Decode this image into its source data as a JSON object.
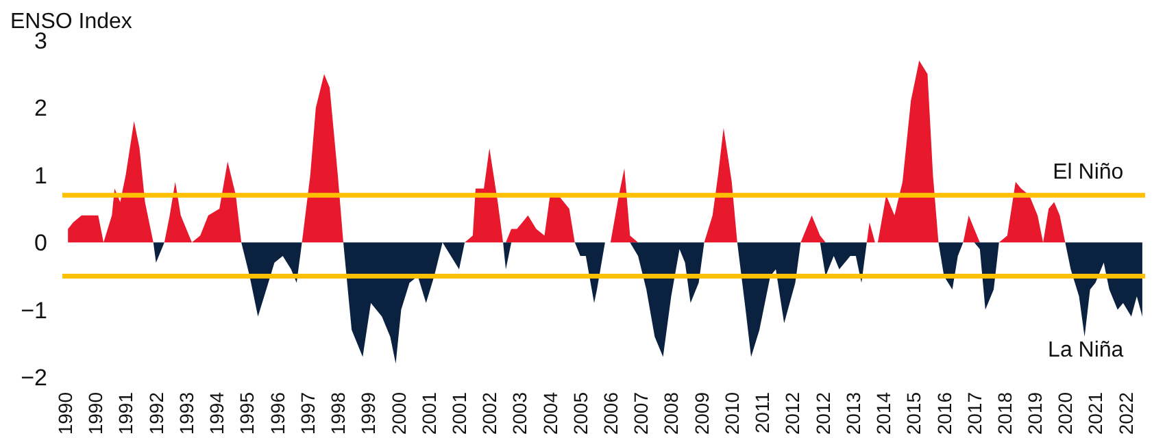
{
  "chart_data": {
    "type": "area",
    "ylabel": "ENSO Index",
    "x": [
      "1990-02",
      "1990-04",
      "1990-07",
      "1990-10",
      "1991-01",
      "1991-03",
      "1991-06",
      "1991-07",
      "1991-09",
      "1991-11",
      "1992-02",
      "1992-04",
      "1992-06",
      "1992-09",
      "1992-10",
      "1993-01",
      "1993-03",
      "1993-05",
      "1993-07",
      "1993-11",
      "1994-02",
      "1994-05",
      "1994-09",
      "1994-12",
      "1995-03",
      "1995-05",
      "1995-08",
      "1995-11",
      "1996-02",
      "1996-05",
      "1996-08",
      "1996-11",
      "1997-01",
      "1997-03",
      "1997-06",
      "1997-08",
      "1997-11",
      "1998-01",
      "1998-04",
      "1998-06",
      "1998-09",
      "1999-01",
      "1999-04",
      "1999-08",
      "1999-11",
      "2000-01",
      "2000-03",
      "2000-06",
      "2000-09",
      "2000-12",
      "2001-03",
      "2001-06",
      "2001-09",
      "2001-12",
      "2002-02",
      "2002-05",
      "2002-06",
      "2002-09",
      "2002-11",
      "2003-02",
      "2003-04",
      "2003-05",
      "2003-07",
      "2003-09",
      "2004-01",
      "2004-04",
      "2004-07",
      "2004-09",
      "2004-12",
      "2005-04",
      "2005-06",
      "2005-08",
      "2005-10",
      "2006-01",
      "2006-02",
      "2006-05",
      "2006-07",
      "2006-10",
      "2006-12",
      "2007-02",
      "2007-05",
      "2007-08",
      "2007-11",
      "2008-02",
      "2008-05",
      "2008-08",
      "2008-10",
      "2008-12",
      "2009-03",
      "2009-05",
      "2009-08",
      "2009-10",
      "2009-12",
      "2010-03",
      "2010-05",
      "2010-08",
      "2010-10",
      "2011-01",
      "2011-05",
      "2011-07",
      "2011-10",
      "2012-02",
      "2012-04",
      "2012-08",
      "2012-11",
      "2013-01",
      "2013-04",
      "2013-06",
      "2013-10",
      "2013-12",
      "2014-02",
      "2014-04",
      "2014-05",
      "2014-07",
      "2014-08",
      "2014-11",
      "2015-02",
      "2015-05",
      "2015-08",
      "2015-11",
      "2016-02",
      "2016-04",
      "2016-06",
      "2016-08",
      "2016-11",
      "2017-01",
      "2017-03",
      "2017-05",
      "2017-07",
      "2017-09",
      "2017-11",
      "2018-02",
      "2018-04",
      "2018-07",
      "2018-10",
      "2018-12",
      "2019-03",
      "2019-06",
      "2019-08",
      "2019-10",
      "2019-12",
      "2020-02",
      "2020-04",
      "2020-06",
      "2020-09",
      "2020-11",
      "2021-01",
      "2021-03",
      "2021-06",
      "2021-08",
      "2021-11",
      "2022-01",
      "2022-04",
      "2022-06",
      "2022-08"
    ],
    "series": [
      {
        "color": "#e8192c",
        "values": [
          0.2,
          0.3,
          0.4,
          0.4,
          0.4,
          0,
          0.4,
          0.8,
          0.6,
          1.0,
          1.8,
          1.4,
          0.6,
          0,
          0,
          0,
          0.4,
          0.9,
          0.4,
          0,
          0.1,
          0.4,
          0.5,
          1.2,
          0.7,
          0,
          0,
          0,
          0,
          0,
          0,
          0,
          0,
          0,
          1.0,
          2.0,
          2.5,
          2.3,
          1.0,
          0,
          0,
          0,
          0,
          0,
          0,
          0,
          0,
          0,
          0,
          0,
          0,
          0,
          0,
          0,
          0,
          0.1,
          0.8,
          0.8,
          1.4,
          0.6,
          0,
          0,
          0.2,
          0.2,
          0.4,
          0.2,
          0.1,
          0.7,
          0.7,
          0.5,
          0,
          0,
          0,
          0,
          0,
          0,
          0,
          0.7,
          1.1,
          0.1,
          0,
          0,
          0,
          0,
          0,
          0,
          0,
          0,
          0,
          0,
          0.4,
          1.0,
          1.7,
          0.9,
          0,
          0,
          0,
          0,
          0,
          0,
          0,
          0,
          0,
          0.4,
          0.1,
          0,
          0,
          0,
          0,
          0,
          0,
          0,
          0.3,
          0,
          0,
          0.7,
          0.4,
          0.9,
          2.1,
          2.7,
          2.5,
          1.0,
          0,
          0,
          0,
          0,
          0,
          0.4,
          0.2,
          0,
          0,
          0,
          0,
          0.1,
          0.9,
          0.8,
          0.7,
          0.4,
          0,
          0.5,
          0.6,
          0.4,
          0,
          0,
          0,
          0,
          0,
          0,
          0,
          0,
          0,
          0,
          0,
          0,
          0
        ]
      },
      {
        "color": "#0a2240",
        "values": [
          0,
          0,
          0,
          0,
          0,
          0,
          0,
          0,
          0,
          0,
          0,
          0,
          0,
          0,
          -0.3,
          0,
          0,
          0,
          0,
          0,
          0,
          0,
          0,
          0,
          0,
          0,
          -0.5,
          -1.1,
          -0.7,
          -0.3,
          -0.2,
          -0.4,
          -0.6,
          0,
          0,
          0,
          0,
          0,
          0,
          0,
          -1.3,
          -1.7,
          -0.9,
          -1.1,
          -1.4,
          -1.8,
          -1.0,
          -0.6,
          -0.5,
          -0.9,
          -0.5,
          0,
          -0.2,
          -0.4,
          0,
          0,
          0,
          0,
          0,
          0,
          0,
          -0.4,
          0,
          0,
          0,
          0,
          0,
          0,
          0,
          0,
          0,
          -0.2,
          -0.2,
          -0.9,
          -0.7,
          0,
          0,
          0,
          0,
          0,
          -0.2,
          -0.7,
          -1.4,
          -1.7,
          -0.8,
          -0.1,
          -0.3,
          -0.9,
          -0.6,
          0,
          0,
          0,
          0,
          0,
          0,
          -1.0,
          -1.7,
          -1.3,
          -0.5,
          -0.4,
          -1.2,
          -0.6,
          0,
          0,
          0,
          -0.5,
          -0.2,
          -0.4,
          -0.2,
          -0.2,
          -0.6,
          0,
          0,
          0,
          0,
          0,
          0,
          0,
          0,
          0,
          0,
          0,
          0,
          -0.5,
          -0.7,
          -0.2,
          0,
          0,
          0,
          -0.1,
          -1.0,
          -0.7,
          0,
          0,
          0,
          0,
          0,
          0,
          0,
          0,
          0,
          0,
          0,
          -0.4,
          -0.8,
          -1.4,
          -0.7,
          -0.6,
          -0.3,
          -0.7,
          -1.0,
          -0.9,
          -1.1,
          -0.8,
          -1.1
        ]
      }
    ],
    "xlim": [
      "1989-12",
      "2022-09"
    ],
    "xticks": [
      {
        "value": "1990-01",
        "label": "1990"
      },
      {
        "value": "1990-12",
        "label": "1990"
      },
      {
        "value": "1991-11",
        "label": "1991"
      },
      {
        "value": "1992-10",
        "label": "1992"
      },
      {
        "value": "1993-09",
        "label": "1993"
      },
      {
        "value": "1994-08",
        "label": "1994"
      },
      {
        "value": "1995-07",
        "label": "1995"
      },
      {
        "value": "1996-06",
        "label": "1996"
      },
      {
        "value": "1997-05",
        "label": "1997"
      },
      {
        "value": "1998-04",
        "label": "1998"
      },
      {
        "value": "1999-03",
        "label": "1999"
      },
      {
        "value": "2000-02",
        "label": "2000"
      },
      {
        "value": "2001-01",
        "label": "2001"
      },
      {
        "value": "2001-12",
        "label": "2001"
      },
      {
        "value": "2002-11",
        "label": "2002"
      },
      {
        "value": "2003-10",
        "label": "2003"
      },
      {
        "value": "2004-09",
        "label": "2004"
      },
      {
        "value": "2005-08",
        "label": "2005"
      },
      {
        "value": "2006-07",
        "label": "2006"
      },
      {
        "value": "2007-06",
        "label": "2007"
      },
      {
        "value": "2008-05",
        "label": "2008"
      },
      {
        "value": "2009-04",
        "label": "2009"
      },
      {
        "value": "2010-03",
        "label": "2010"
      },
      {
        "value": "2011-02",
        "label": "2011"
      },
      {
        "value": "2012-01",
        "label": "2012"
      },
      {
        "value": "2012-12",
        "label": "2012"
      },
      {
        "value": "2013-11",
        "label": "2013"
      },
      {
        "value": "2014-10",
        "label": "2014"
      },
      {
        "value": "2015-09",
        "label": "2015"
      },
      {
        "value": "2016-08",
        "label": "2016"
      },
      {
        "value": "2017-07",
        "label": "2017"
      },
      {
        "value": "2018-06",
        "label": "2018"
      },
      {
        "value": "2019-05",
        "label": "2019"
      },
      {
        "value": "2020-04",
        "label": "2020"
      },
      {
        "value": "2021-03",
        "label": "2021"
      },
      {
        "value": "2022-02",
        "label": "2022"
      }
    ],
    "ylim": [
      -2,
      3
    ],
    "yticks": [
      -2,
      -1,
      0,
      1,
      2,
      3
    ],
    "ref_lines": [
      {
        "axis": "y",
        "value": 0.7,
        "label": "El Niño",
        "color": "#ffc000"
      },
      {
        "axis": "y",
        "value": -0.5,
        "label": "La Niña",
        "color": "#ffc000"
      }
    ],
    "grid": false
  }
}
